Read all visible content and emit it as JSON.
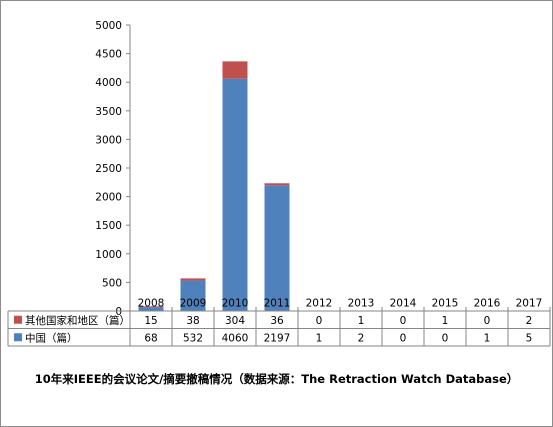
{
  "caption": "10年来IEEE的会议论文/摘要撤稿情况（数据来源：The Retraction Watch Database）",
  "chart_data": {
    "type": "bar",
    "stacked": true,
    "categories": [
      "2008",
      "2009",
      "2010",
      "2011",
      "2012",
      "2013",
      "2014",
      "2015",
      "2016",
      "2017"
    ],
    "series": [
      {
        "name": "中国（篇）",
        "color": "#4f81bd",
        "values": [
          68,
          532,
          4060,
          2197,
          1,
          2,
          0,
          0,
          1,
          5
        ]
      },
      {
        "name": "其他国家和地区（篇）",
        "color": "#c0504d",
        "values": [
          15,
          38,
          304,
          36,
          0,
          1,
          0,
          1,
          0,
          2
        ]
      }
    ],
    "ylim": [
      0,
      5000
    ],
    "yticks": [
      "0",
      "500",
      "1000",
      "1500",
      "2000",
      "2500",
      "3000",
      "3500",
      "4000",
      "4500",
      "5000"
    ],
    "grid": false,
    "legend": "data-table",
    "data_table": true
  }
}
